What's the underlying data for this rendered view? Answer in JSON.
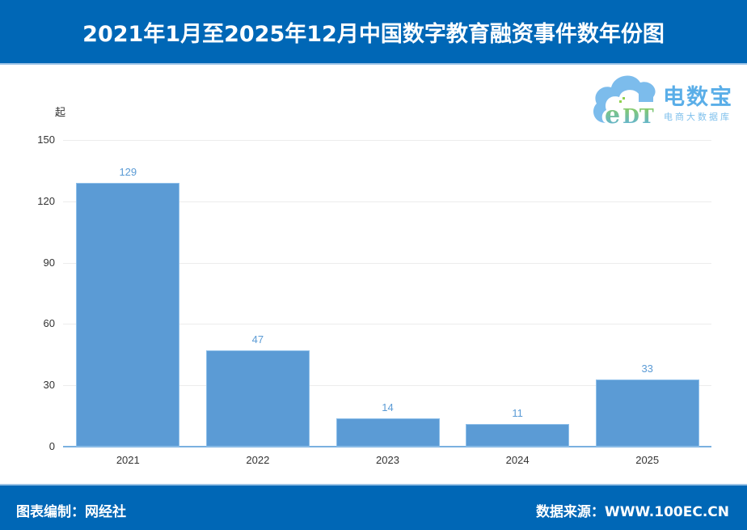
{
  "header": {
    "title": "2021年1月至2025年12月中国数字教育融资事件数年份图"
  },
  "logo": {
    "icon": "cloud-edt-icon",
    "mark_text": "eDT",
    "name": "电数宝",
    "subtitle": "电商大数据库"
  },
  "footer": {
    "left": "图表编制：网经社",
    "right": "数据来源：WWW.100EC.CN"
  },
  "colors": {
    "header_bg": "#0067b6",
    "bar": "#5b9bd5",
    "bar_label": "#5b9bd5",
    "axis": "#7ab1e0",
    "grid": "#ececec"
  },
  "chart_data": {
    "type": "bar",
    "title": "2021年1月至2025年12月中国数字教育融资事件数年份图",
    "xlabel": "",
    "ylabel": "起",
    "categories": [
      "2021",
      "2022",
      "2023",
      "2024",
      "2025"
    ],
    "values": [
      129,
      47,
      14,
      11,
      33
    ],
    "value_labels": [
      "129",
      "47",
      "14",
      "11",
      "33"
    ],
    "yticks": [
      "0",
      "30",
      "60",
      "90",
      "120",
      "150"
    ],
    "ylim": [
      0,
      150
    ],
    "grid": true,
    "legend": null
  }
}
